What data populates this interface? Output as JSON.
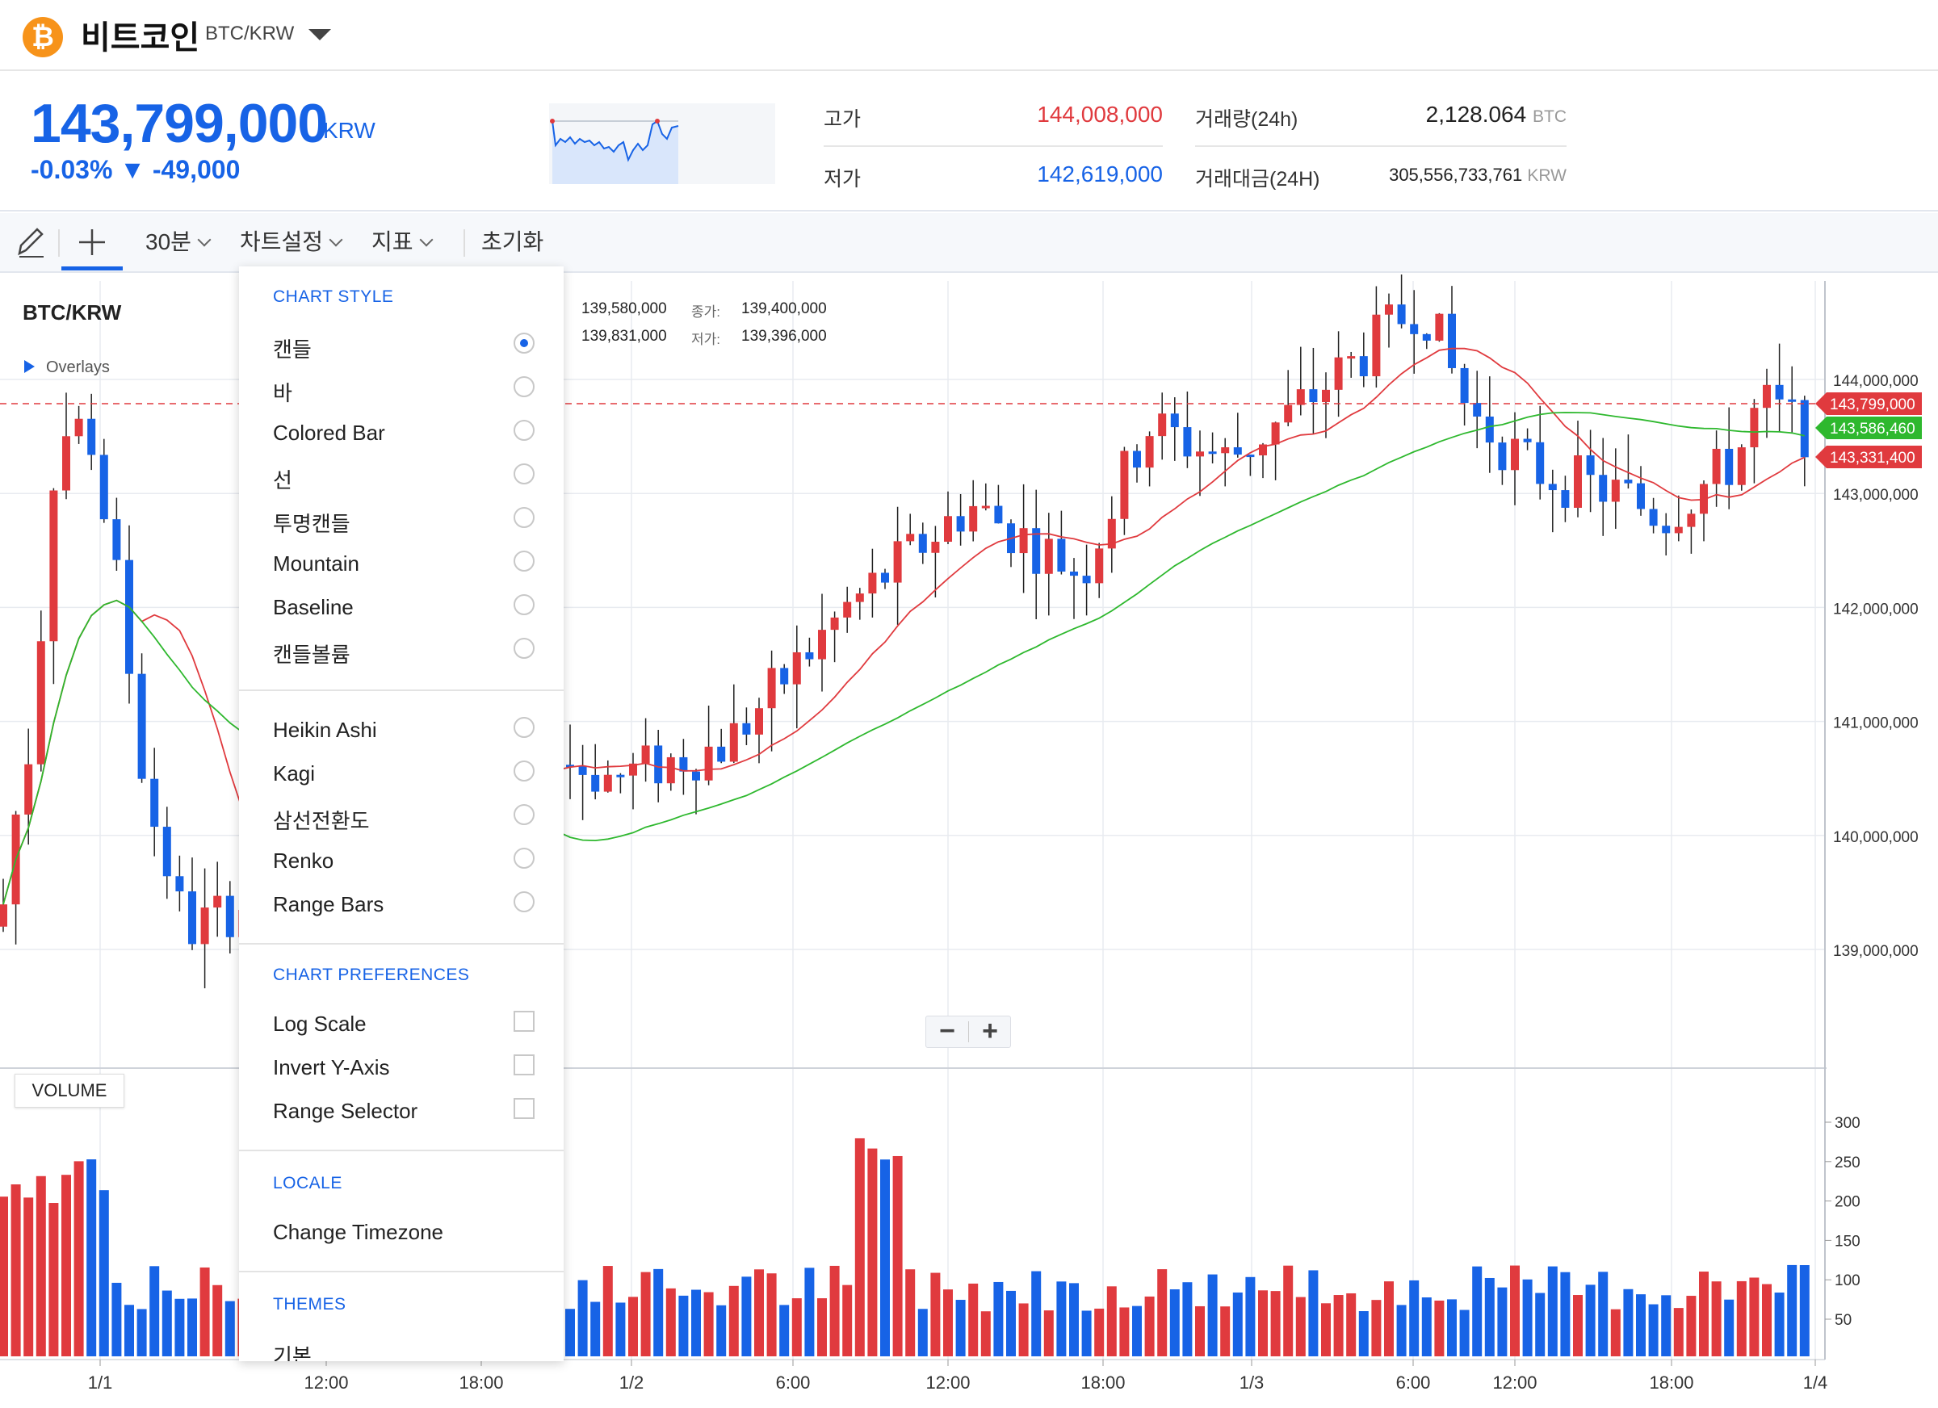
{
  "header": {
    "coin_icon_glyph": "₿",
    "coin_name": "비트코인",
    "pair": "BTC/KRW",
    "dropdown_icon": "caret-down-icon"
  },
  "ticker": {
    "price": "143,799,000",
    "price_unit": "KRW",
    "change": "-0.03% ▼ -49,000",
    "high_label": "고가",
    "high_value": "144,008,000",
    "low_label": "저가",
    "low_value": "142,619,000",
    "volume_label": "거래량(24h)",
    "volume_value": "2,128.064",
    "volume_unit": "BTC",
    "amount_label": "거래대금(24H)",
    "amount_value": "305,556,733,761",
    "amount_unit": "KRW",
    "colors": {
      "up": "#e03a3e",
      "down": "#1763e6"
    }
  },
  "toolbar": {
    "draw_icon": "pencil-icon",
    "crosshair_icon": "crosshair-icon",
    "interval": "30분",
    "chart_settings": "차트설정",
    "indicators": "지표",
    "reset": "초기화"
  },
  "chart": {
    "title": "BTC/KRW",
    "overlays": "Overlays",
    "ohlc": {
      "open_value": "139,580,000",
      "high_value": "139,831,000",
      "close_label": "종가:",
      "close_value": "139,400,000",
      "low_label": "저가:",
      "low_value": "139,396,000"
    },
    "volume_label": "VOLUME",
    "zoom_out": "−",
    "zoom_in": "+"
  },
  "chart_data": {
    "type": "candlestick",
    "price_axis_ticks": [
      "144,000,000",
      "143,000,000",
      "142,000,000",
      "141,000,000",
      "140,000,000",
      "139,000,000"
    ],
    "price_badges": [
      {
        "value": "143,799,000",
        "color": "#e03a3e"
      },
      {
        "value": "143,586,460",
        "color": "#2eb82e"
      },
      {
        "value": "143,331,400",
        "color": "#e03a3e"
      }
    ],
    "volume_axis_ticks": [
      "300",
      "250",
      "200",
      "150",
      "100",
      "50"
    ],
    "time_ticks": [
      "1/1",
      "12:00",
      "18:00",
      "1/2",
      "6:00",
      "12:00",
      "18:00",
      "1/3",
      "6:00",
      "12:00",
      "18:00",
      "1/4"
    ],
    "series": [
      {
        "name": "price",
        "type": "candles"
      },
      {
        "name": "ma-short",
        "color": "#e03a3e"
      },
      {
        "name": "ma-long",
        "color": "#2eb82e"
      }
    ]
  },
  "menu": {
    "chart_style_header": "CHART STYLE",
    "styles": [
      "캔들",
      "바",
      "Colored Bar",
      "선",
      "투명캔들",
      "Mountain",
      "Baseline",
      "캔들볼륨"
    ],
    "styles2": [
      "Heikin Ashi",
      "Kagi",
      "삼선전환도",
      "Renko",
      "Range Bars"
    ],
    "selected_style": "캔들",
    "prefs_header": "CHART PREFERENCES",
    "prefs": [
      "Log Scale",
      "Invert Y-Axis",
      "Range Selector"
    ],
    "locale_header": "LOCALE",
    "change_timezone": "Change Timezone",
    "themes_header": "THEMES",
    "theme_default": "기본"
  }
}
